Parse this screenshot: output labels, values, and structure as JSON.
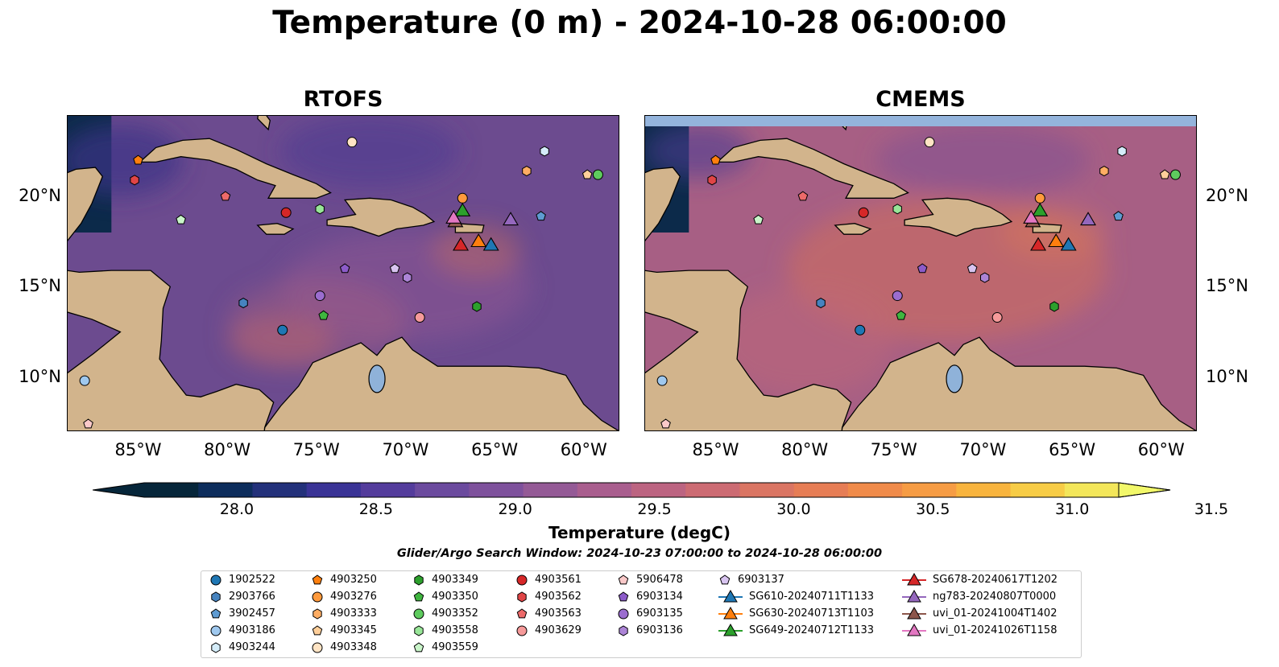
{
  "chart_data": {
    "type": "map",
    "title": "Temperature (0 m) - 2024-10-28 06:00:00",
    "panels": [
      {
        "title": "RTOFS"
      },
      {
        "title": "CMEMS"
      }
    ],
    "xticks": [
      "85°W",
      "80°W",
      "75°W",
      "70°W",
      "65°W",
      "60°W"
    ],
    "xtick_values": [
      -85,
      -80,
      -75,
      -70,
      -65,
      -60
    ],
    "yticks": [
      "20°N",
      "15°N",
      "10°N"
    ],
    "ytick_values": [
      20,
      15,
      10
    ],
    "xlim": [
      -89,
      -58
    ],
    "ylim": [
      7,
      24.5
    ],
    "colorbar": {
      "label": "Temperature (degC)",
      "ticks": [
        "28.0",
        "28.5",
        "29.0",
        "29.5",
        "30.0",
        "30.5",
        "31.0",
        "31.5"
      ],
      "tick_values": [
        28.0,
        28.5,
        29.0,
        29.5,
        30.0,
        30.5,
        31.0,
        31.5
      ],
      "range": [
        28.0,
        31.5
      ],
      "extend": "both",
      "colors": [
        "#06263a",
        "#0d2d5c",
        "#23317a",
        "#3a3396",
        "#543c9c",
        "#6b4a9e",
        "#7e519c",
        "#945a96",
        "#a95e8e",
        "#bc6481",
        "#cc6b73",
        "#da7563",
        "#e67d55",
        "#f08b4a",
        "#f69c44",
        "#f8b43e",
        "#f7cc46",
        "#f3e65a"
      ]
    },
    "legend_title": "Glider/Argo Search Window: 2024-10-23 07:00:00 to 2024-10-28 06:00:00",
    "legend_placement": "bottom",
    "argo_floats": [
      {
        "id": "1902522",
        "lon": -76.9,
        "lat": 12.6,
        "marker": "circle",
        "color": "#1f77b4"
      },
      {
        "id": "2903766",
        "lon": -79.1,
        "lat": 14.1,
        "marker": "hexagon",
        "color": "#4683bf"
      },
      {
        "id": "3902457",
        "lon": -62.4,
        "lat": 18.9,
        "marker": "pentagon",
        "color": "#5e9bd2"
      },
      {
        "id": "4903186",
        "lon": -88.0,
        "lat": 9.8,
        "marker": "circle",
        "color": "#9fc8ee"
      },
      {
        "id": "4903244",
        "lon": -62.2,
        "lat": 22.5,
        "marker": "hexagon",
        "color": "#d4ecf9"
      },
      {
        "id": "4903250",
        "lon": -85.0,
        "lat": 22.0,
        "marker": "pentagon",
        "color": "#ff7f0e"
      },
      {
        "id": "4903276",
        "lon": -66.8,
        "lat": 19.9,
        "marker": "circle",
        "color": "#ff9a3c"
      },
      {
        "id": "4903333",
        "lon": -63.2,
        "lat": 21.4,
        "marker": "hexagon",
        "color": "#ffad63"
      },
      {
        "id": "4903345",
        "lon": -59.8,
        "lat": 21.2,
        "marker": "pentagon",
        "color": "#ffcf9a"
      },
      {
        "id": "4903348",
        "lon": -73.0,
        "lat": 23.0,
        "marker": "circle",
        "color": "#ffe4c4"
      },
      {
        "id": "4903349",
        "lon": -66.0,
        "lat": 13.9,
        "marker": "hexagon",
        "color": "#2ca02c"
      },
      {
        "id": "4903350",
        "lon": -74.6,
        "lat": 13.4,
        "marker": "pentagon",
        "color": "#3fb53f"
      },
      {
        "id": "4903352",
        "lon": -59.2,
        "lat": 21.2,
        "marker": "circle",
        "color": "#5ecb5e"
      },
      {
        "id": "4903558",
        "lon": -74.8,
        "lat": 19.3,
        "marker": "hexagon",
        "color": "#98e698"
      },
      {
        "id": "4903559",
        "lon": -82.6,
        "lat": 18.7,
        "marker": "pentagon",
        "color": "#c9f5c9"
      },
      {
        "id": "4903561",
        "lon": -76.7,
        "lat": 19.1,
        "marker": "circle",
        "color": "#d62728"
      },
      {
        "id": "4903562",
        "lon": -85.2,
        "lat": 20.9,
        "marker": "hexagon",
        "color": "#e04546"
      },
      {
        "id": "4903563",
        "lon": -80.1,
        "lat": 20.0,
        "marker": "pentagon",
        "color": "#ed6a6a"
      },
      {
        "id": "4903629",
        "lon": -69.2,
        "lat": 13.3,
        "marker": "circle",
        "color": "#f69a9a"
      },
      {
        "id": "5906478",
        "lon": -87.8,
        "lat": 7.4,
        "marker": "pentagon",
        "color": "#fac9c9"
      },
      {
        "id": "6903134",
        "lon": -73.4,
        "lat": 16.0,
        "marker": "pentagon",
        "color": "#8c5bc9"
      },
      {
        "id": "6903135",
        "lon": -74.8,
        "lat": 14.5,
        "marker": "circle",
        "color": "#9b6dcf"
      },
      {
        "id": "6903136",
        "lon": -69.9,
        "lat": 15.5,
        "marker": "hexagon",
        "color": "#ac84d6"
      },
      {
        "id": "6903137",
        "lon": -70.6,
        "lat": 16.0,
        "marker": "pentagon",
        "color": "#d8c4f0"
      }
    ],
    "gliders": [
      {
        "id": "SG610-20240711T1133",
        "lon": -65.2,
        "lat": 17.3,
        "color": "#1f77b4"
      },
      {
        "id": "SG630-20240713T1103",
        "lon": -65.9,
        "lat": 17.5,
        "color": "#ff7f0e"
      },
      {
        "id": "SG649-20240712T1133",
        "lon": -66.8,
        "lat": 19.2,
        "color": "#2ca02c"
      },
      {
        "id": "SG678-20240617T1202",
        "lon": -66.9,
        "lat": 17.3,
        "color": "#d62728"
      },
      {
        "id": "ng783-20240807T0000",
        "lon": -64.1,
        "lat": 18.7,
        "color": "#9467bd"
      },
      {
        "id": "uvi_01-20241004T1402",
        "lon": -67.2,
        "lat": 18.6,
        "color": "#8c564b"
      },
      {
        "id": "uvi_01-20241026T1158",
        "lon": -67.3,
        "lat": 18.8,
        "color": "#e377c2"
      }
    ]
  }
}
